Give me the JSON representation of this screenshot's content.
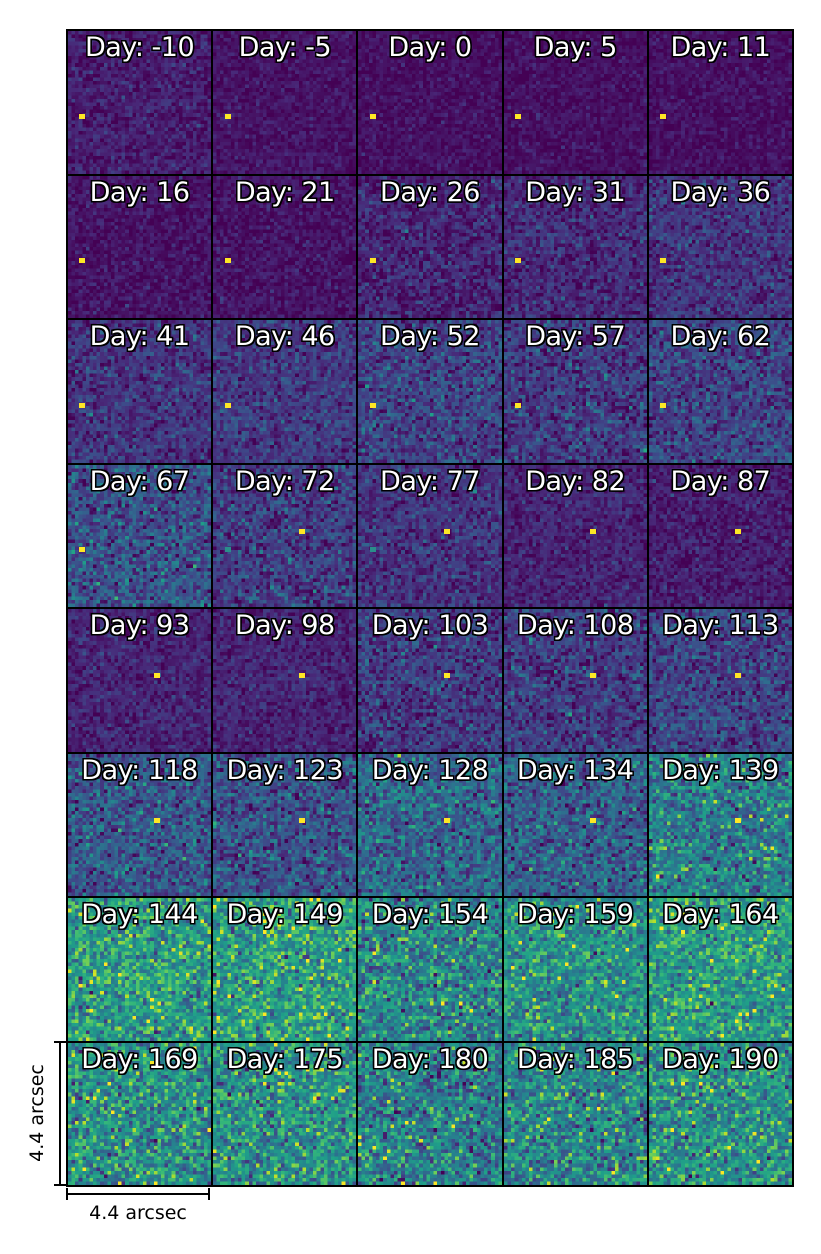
{
  "figure": {
    "label_prefix": "Day: ",
    "colormap": [
      "#440154",
      "#482878",
      "#3e4989",
      "#31688e",
      "#26828e",
      "#1f9e89",
      "#35b779",
      "#6ece58",
      "#b5de2b",
      "#fde725"
    ],
    "source_color": "#fde725",
    "panels": [
      {
        "day": "-10",
        "background_level": 0.08,
        "noise": 0.06,
        "source": "left"
      },
      {
        "day": "-5",
        "background_level": 0.05,
        "noise": 0.04,
        "source": "left"
      },
      {
        "day": "0",
        "background_level": 0.04,
        "noise": 0.04,
        "source": "left"
      },
      {
        "day": "5",
        "background_level": 0.04,
        "noise": 0.04,
        "source": "left"
      },
      {
        "day": "11",
        "background_level": 0.04,
        "noise": 0.04,
        "source": "left"
      },
      {
        "day": "16",
        "background_level": 0.05,
        "noise": 0.05,
        "source": "left"
      },
      {
        "day": "21",
        "background_level": 0.05,
        "noise": 0.05,
        "source": "left"
      },
      {
        "day": "26",
        "background_level": 0.1,
        "noise": 0.08,
        "source": "left"
      },
      {
        "day": "31",
        "background_level": 0.12,
        "noise": 0.08,
        "source": "left"
      },
      {
        "day": "36",
        "background_level": 0.15,
        "noise": 0.08,
        "source": "left"
      },
      {
        "day": "41",
        "background_level": 0.15,
        "noise": 0.08,
        "source": "left"
      },
      {
        "day": "46",
        "background_level": 0.17,
        "noise": 0.08,
        "source": "left"
      },
      {
        "day": "52",
        "background_level": 0.2,
        "noise": 0.1,
        "source": "left"
      },
      {
        "day": "57",
        "background_level": 0.17,
        "noise": 0.1,
        "source": "left"
      },
      {
        "day": "62",
        "background_level": 0.2,
        "noise": 0.1,
        "source": "left"
      },
      {
        "day": "67",
        "background_level": 0.25,
        "noise": 0.12,
        "source": "left"
      },
      {
        "day": "72",
        "background_level": 0.18,
        "noise": 0.1,
        "source": "both"
      },
      {
        "day": "77",
        "background_level": 0.15,
        "noise": 0.08,
        "source": "both"
      },
      {
        "day": "82",
        "background_level": 0.1,
        "noise": 0.06,
        "source": "right"
      },
      {
        "day": "87",
        "background_level": 0.08,
        "noise": 0.06,
        "source": "right"
      },
      {
        "day": "93",
        "background_level": 0.1,
        "noise": 0.06,
        "source": "right"
      },
      {
        "day": "98",
        "background_level": 0.1,
        "noise": 0.06,
        "source": "right"
      },
      {
        "day": "103",
        "background_level": 0.17,
        "noise": 0.1,
        "source": "right"
      },
      {
        "day": "108",
        "background_level": 0.17,
        "noise": 0.1,
        "source": "right"
      },
      {
        "day": "113",
        "background_level": 0.2,
        "noise": 0.1,
        "source": "right"
      },
      {
        "day": "118",
        "background_level": 0.27,
        "noise": 0.12,
        "source": "right"
      },
      {
        "day": "123",
        "background_level": 0.25,
        "noise": 0.12,
        "source": "right"
      },
      {
        "day": "128",
        "background_level": 0.33,
        "noise": 0.13,
        "source": "right"
      },
      {
        "day": "134",
        "background_level": 0.3,
        "noise": 0.13,
        "source": "right"
      },
      {
        "day": "139",
        "background_level": 0.42,
        "noise": 0.14,
        "source": "right"
      },
      {
        "day": "144",
        "background_level": 0.55,
        "noise": 0.16,
        "source": "none"
      },
      {
        "day": "149",
        "background_level": 0.55,
        "noise": 0.16,
        "source": "none"
      },
      {
        "day": "154",
        "background_level": 0.45,
        "noise": 0.16,
        "source": "none"
      },
      {
        "day": "159",
        "background_level": 0.5,
        "noise": 0.14,
        "source": "none"
      },
      {
        "day": "164",
        "background_level": 0.55,
        "noise": 0.14,
        "source": "none"
      },
      {
        "day": "169",
        "background_level": 0.5,
        "noise": 0.16,
        "source": "none"
      },
      {
        "day": "175",
        "background_level": 0.5,
        "noise": 0.16,
        "source": "none"
      },
      {
        "day": "180",
        "background_level": 0.42,
        "noise": 0.16,
        "source": "none"
      },
      {
        "day": "185",
        "background_level": 0.45,
        "noise": 0.16,
        "source": "none"
      },
      {
        "day": "190",
        "background_level": 0.5,
        "noise": 0.16,
        "source": "none"
      }
    ]
  },
  "scalebar": {
    "horizontal_label": "4.4 arcsec",
    "vertical_label": "4.4 arcsec"
  }
}
